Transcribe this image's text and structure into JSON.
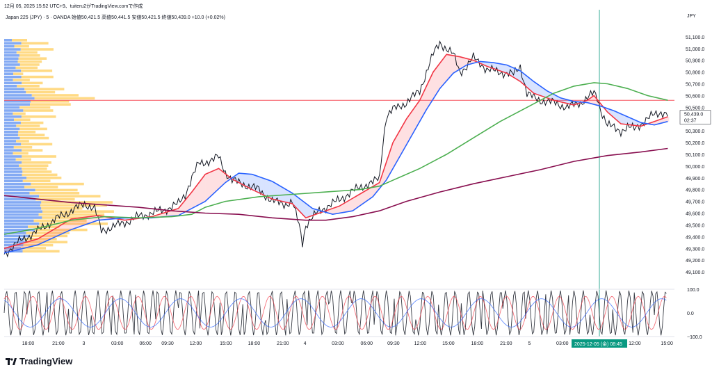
{
  "header": {
    "title_line": "12月 05, 2025 15:52 UTC+9、tuiteru2がTradingView.comで作成",
    "symbol_line": "Japan 225 (JPY) · 5 · OANDA  始値50,421.5  高値50,441.5  安値50,421.5  終値50,439.0  +10.0 (+0.02%)",
    "currency": "JPY"
  },
  "price_axis": {
    "ticks": [
      "51,100.0",
      "51,000.0",
      "50,900.0",
      "50,800.0",
      "50,700.0",
      "50,600.0",
      "50,500.0",
      "50,400.0",
      "50,300.0",
      "50,200.0",
      "50,100.0",
      "50,000.0",
      "49,900.0",
      "49,800.0",
      "49,700.0",
      "49,600.0",
      "49,500.0",
      "49,400.0",
      "49,300.0",
      "49,200.0",
      "49,100.0"
    ],
    "last_price": "50,439.0",
    "countdown": "02:37"
  },
  "osc_axis": {
    "ticks": [
      "100.0",
      "0.0",
      "−100.0"
    ]
  },
  "time_axis": {
    "labels": [
      "18:00",
      "21:00",
      "3",
      "03:00",
      "06:00",
      "09:30",
      "12:00",
      "15:00",
      "18:00",
      "21:00",
      "4",
      "03:00",
      "06:00",
      "09:30",
      "12:00",
      "15:00",
      "18:00",
      "21:00",
      "5",
      "03:00",
      "12:00",
      "15:00"
    ],
    "cursor_label": "2025-12-05 (金)   08:45"
  },
  "chart_data": {
    "type": "line",
    "ylim": [
      49000,
      51200
    ],
    "osc_ylim": [
      -100,
      100
    ],
    "horizontal_line": 50560,
    "cursor_x_index": 0.888,
    "series": [
      {
        "color": "#131722",
        "points": [
          [
            0,
            49250
          ],
          [
            0.02,
            49350
          ],
          [
            0.05,
            49450
          ],
          [
            0.08,
            49560
          ],
          [
            0.1,
            49620
          ],
          [
            0.12,
            49680
          ],
          [
            0.135,
            49640
          ],
          [
            0.145,
            49450
          ],
          [
            0.16,
            49480
          ],
          [
            0.18,
            49520
          ],
          [
            0.2,
            49570
          ],
          [
            0.22,
            49600
          ],
          [
            0.24,
            49630
          ],
          [
            0.26,
            49680
          ],
          [
            0.27,
            49760
          ],
          [
            0.28,
            49900
          ],
          [
            0.29,
            50020
          ],
          [
            0.31,
            50050
          ],
          [
            0.32,
            50080
          ],
          [
            0.33,
            49950
          ],
          [
            0.34,
            49880
          ],
          [
            0.36,
            49840
          ],
          [
            0.38,
            49800
          ],
          [
            0.4,
            49700
          ],
          [
            0.42,
            49680
          ],
          [
            0.43,
            49690
          ],
          [
            0.44,
            49500
          ],
          [
            0.445,
            49350
          ],
          [
            0.45,
            49500
          ],
          [
            0.47,
            49620
          ],
          [
            0.49,
            49680
          ],
          [
            0.51,
            49750
          ],
          [
            0.53,
            49820
          ],
          [
            0.55,
            49860
          ],
          [
            0.56,
            49900
          ],
          [
            0.565,
            50200
          ],
          [
            0.57,
            50420
          ],
          [
            0.58,
            50480
          ],
          [
            0.6,
            50540
          ],
          [
            0.62,
            50640
          ],
          [
            0.63,
            50800
          ],
          [
            0.64,
            50950
          ],
          [
            0.65,
            51050
          ],
          [
            0.66,
            51000
          ],
          [
            0.67,
            50950
          ],
          [
            0.68,
            50800
          ],
          [
            0.69,
            50850
          ],
          [
            0.7,
            50920
          ],
          [
            0.71,
            50880
          ],
          [
            0.72,
            50820
          ],
          [
            0.74,
            50800
          ],
          [
            0.76,
            50780
          ],
          [
            0.77,
            50850
          ],
          [
            0.78,
            50620
          ],
          [
            0.79,
            50580
          ],
          [
            0.8,
            50560
          ],
          [
            0.82,
            50540
          ],
          [
            0.84,
            50500
          ],
          [
            0.86,
            50540
          ],
          [
            0.88,
            50620
          ],
          [
            0.885,
            50580
          ],
          [
            0.89,
            50480
          ],
          [
            0.9,
            50350
          ],
          [
            0.92,
            50300
          ],
          [
            0.93,
            50330
          ],
          [
            0.94,
            50320
          ],
          [
            0.95,
            50360
          ],
          [
            0.96,
            50400
          ],
          [
            0.97,
            50440
          ],
          [
            0.98,
            50460
          ],
          [
            0.99,
            50439
          ]
        ]
      },
      {
        "color": "#f23645",
        "points": [
          [
            0,
            49300
          ],
          [
            0.05,
            49380
          ],
          [
            0.1,
            49550
          ],
          [
            0.14,
            49580
          ],
          [
            0.18,
            49540
          ],
          [
            0.22,
            49570
          ],
          [
            0.26,
            49640
          ],
          [
            0.28,
            49780
          ],
          [
            0.3,
            49930
          ],
          [
            0.32,
            49980
          ],
          [
            0.34,
            49890
          ],
          [
            0.37,
            49800
          ],
          [
            0.4,
            49720
          ],
          [
            0.43,
            49680
          ],
          [
            0.45,
            49560
          ],
          [
            0.47,
            49600
          ],
          [
            0.5,
            49660
          ],
          [
            0.53,
            49760
          ],
          [
            0.56,
            49860
          ],
          [
            0.58,
            50200
          ],
          [
            0.6,
            50400
          ],
          [
            0.62,
            50560
          ],
          [
            0.64,
            50800
          ],
          [
            0.66,
            50950
          ],
          [
            0.68,
            50930
          ],
          [
            0.7,
            50900
          ],
          [
            0.72,
            50850
          ],
          [
            0.75,
            50790
          ],
          [
            0.77,
            50720
          ],
          [
            0.79,
            50620
          ],
          [
            0.82,
            50560
          ],
          [
            0.85,
            50520
          ],
          [
            0.87,
            50560
          ],
          [
            0.88,
            50600
          ],
          [
            0.9,
            50460
          ],
          [
            0.92,
            50360
          ],
          [
            0.95,
            50340
          ],
          [
            0.97,
            50380
          ],
          [
            0.99,
            50420
          ]
        ]
      },
      {
        "color": "#2962ff",
        "points": [
          [
            0,
            49260
          ],
          [
            0.05,
            49330
          ],
          [
            0.1,
            49460
          ],
          [
            0.14,
            49540
          ],
          [
            0.18,
            49560
          ],
          [
            0.22,
            49560
          ],
          [
            0.26,
            49580
          ],
          [
            0.3,
            49700
          ],
          [
            0.33,
            49860
          ],
          [
            0.35,
            49940
          ],
          [
            0.37,
            49930
          ],
          [
            0.4,
            49870
          ],
          [
            0.43,
            49770
          ],
          [
            0.46,
            49640
          ],
          [
            0.49,
            49590
          ],
          [
            0.52,
            49620
          ],
          [
            0.55,
            49740
          ],
          [
            0.57,
            49880
          ],
          [
            0.59,
            50080
          ],
          [
            0.61,
            50280
          ],
          [
            0.63,
            50480
          ],
          [
            0.65,
            50660
          ],
          [
            0.67,
            50790
          ],
          [
            0.69,
            50860
          ],
          [
            0.71,
            50890
          ],
          [
            0.73,
            50880
          ],
          [
            0.75,
            50860
          ],
          [
            0.77,
            50810
          ],
          [
            0.79,
            50720
          ],
          [
            0.81,
            50640
          ],
          [
            0.83,
            50580
          ],
          [
            0.85,
            50550
          ],
          [
            0.87,
            50540
          ],
          [
            0.89,
            50510
          ],
          [
            0.91,
            50470
          ],
          [
            0.93,
            50420
          ],
          [
            0.95,
            50370
          ],
          [
            0.97,
            50350
          ],
          [
            0.99,
            50380
          ]
        ]
      },
      {
        "color": "#4caf50",
        "points": [
          [
            0,
            49420
          ],
          [
            0.05,
            49470
          ],
          [
            0.1,
            49540
          ],
          [
            0.15,
            49570
          ],
          [
            0.2,
            49560
          ],
          [
            0.25,
            49570
          ],
          [
            0.28,
            49590
          ],
          [
            0.3,
            49650
          ],
          [
            0.33,
            49700
          ],
          [
            0.38,
            49740
          ],
          [
            0.43,
            49760
          ],
          [
            0.48,
            49780
          ],
          [
            0.53,
            49800
          ],
          [
            0.56,
            49830
          ],
          [
            0.58,
            49880
          ],
          [
            0.62,
            49980
          ],
          [
            0.66,
            50100
          ],
          [
            0.7,
            50240
          ],
          [
            0.74,
            50380
          ],
          [
            0.78,
            50500
          ],
          [
            0.82,
            50620
          ],
          [
            0.85,
            50680
          ],
          [
            0.88,
            50710
          ],
          [
            0.9,
            50700
          ],
          [
            0.93,
            50660
          ],
          [
            0.96,
            50600
          ],
          [
            0.99,
            50560
          ]
        ]
      },
      {
        "color": "#880e4f",
        "points": [
          [
            0,
            49750
          ],
          [
            0.05,
            49720
          ],
          [
            0.1,
            49690
          ],
          [
            0.15,
            49670
          ],
          [
            0.2,
            49650
          ],
          [
            0.25,
            49620
          ],
          [
            0.3,
            49600
          ],
          [
            0.35,
            49590
          ],
          [
            0.4,
            49560
          ],
          [
            0.45,
            49540
          ],
          [
            0.48,
            49540
          ],
          [
            0.52,
            49570
          ],
          [
            0.56,
            49620
          ],
          [
            0.6,
            49700
          ],
          [
            0.65,
            49780
          ],
          [
            0.7,
            49850
          ],
          [
            0.75,
            49910
          ],
          [
            0.8,
            49970
          ],
          [
            0.85,
            50040
          ],
          [
            0.9,
            50090
          ],
          [
            0.95,
            50120
          ],
          [
            0.99,
            50150
          ]
        ]
      }
    ]
  }
}
